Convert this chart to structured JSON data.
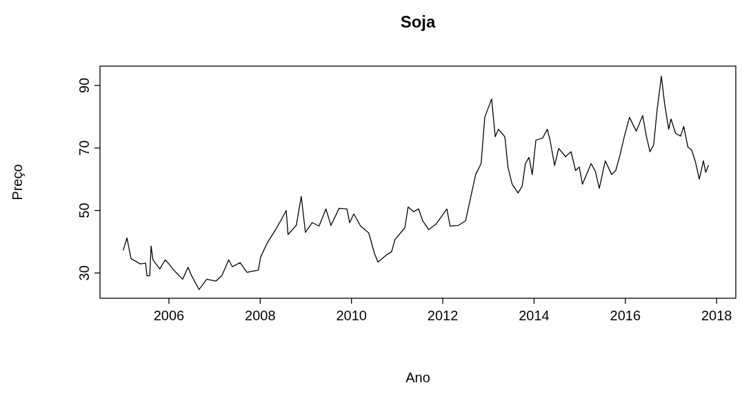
{
  "chart_data": {
    "type": "line",
    "title": "Soja",
    "xlabel": "Ano",
    "ylabel": "Preço",
    "xlim": [
      2004.49,
      2018.42
    ],
    "ylim": [
      21.9,
      96.2
    ],
    "xticks": [
      2006,
      2008,
      2010,
      2012,
      2014,
      2016,
      2018
    ],
    "yticks": [
      30,
      50,
      70,
      90
    ],
    "grid": false,
    "marker": "none",
    "line_style": "solid",
    "series": [
      {
        "color": "#000000",
        "x": [
          2005.0,
          2005.08,
          2005.17,
          2005.37,
          2005.49,
          2005.52,
          2005.58,
          2005.61,
          2005.65,
          2005.8,
          2005.92,
          2006.0,
          2006.12,
          2006.3,
          2006.42,
          2006.48,
          2006.66,
          2006.83,
          2007.03,
          2007.16,
          2007.31,
          2007.39,
          2007.56,
          2007.71,
          2007.96,
          2008.01,
          2008.15,
          2008.3,
          2008.45,
          2008.57,
          2008.61,
          2008.79,
          2008.9,
          2008.99,
          2009.14,
          2009.29,
          2009.44,
          2009.55,
          2009.73,
          2009.9,
          2009.96,
          2010.05,
          2010.2,
          2010.38,
          2010.5,
          2010.58,
          2010.76,
          2010.88,
          2010.95,
          2011.17,
          2011.24,
          2011.36,
          2011.47,
          2011.56,
          2011.69,
          2011.85,
          2012.09,
          2012.16,
          2012.34,
          2012.5,
          2012.6,
          2012.72,
          2012.84,
          2012.92,
          2013.07,
          2013.15,
          2013.22,
          2013.36,
          2013.43,
          2013.52,
          2013.65,
          2013.74,
          2013.81,
          2013.89,
          2013.96,
          2014.04,
          2014.19,
          2014.29,
          2014.35,
          2014.45,
          2014.54,
          2014.69,
          2014.81,
          2014.91,
          2014.99,
          2015.06,
          2015.25,
          2015.34,
          2015.43,
          2015.56,
          2015.7,
          2015.79,
          2015.89,
          2015.97,
          2016.09,
          2016.24,
          2016.38,
          2016.46,
          2016.54,
          2016.62,
          2016.7,
          2016.79,
          2016.86,
          2016.95,
          2017.0,
          2017.1,
          2017.21,
          2017.28,
          2017.37,
          2017.45,
          2017.53,
          2017.62,
          2017.71,
          2017.76,
          2017.82
        ],
        "values": [
          37.3,
          41.2,
          34.6,
          32.9,
          33.1,
          29.1,
          29.1,
          38.6,
          34.2,
          31.3,
          34.2,
          32.9,
          30.7,
          28.0,
          31.8,
          29.6,
          24.7,
          28.0,
          27.4,
          29.1,
          34.2,
          32.0,
          33.3,
          30.2,
          30.9,
          35.1,
          39.5,
          43.0,
          46.7,
          50.0,
          42.3,
          45.2,
          54.5,
          43.0,
          46.1,
          45.0,
          50.5,
          45.2,
          50.7,
          50.5,
          46.1,
          48.9,
          45.0,
          42.8,
          36.4,
          33.5,
          35.7,
          36.8,
          40.6,
          44.5,
          51.1,
          49.6,
          50.5,
          46.7,
          43.9,
          45.6,
          50.5,
          45.0,
          45.2,
          46.7,
          53.4,
          61.5,
          65.0,
          79.8,
          85.7,
          73.6,
          76.0,
          73.6,
          63.7,
          58.4,
          55.6,
          57.8,
          65.0,
          67.0,
          61.5,
          72.5,
          73.2,
          76.0,
          72.5,
          64.4,
          69.9,
          67.2,
          68.8,
          62.8,
          63.9,
          58.4,
          65.0,
          62.6,
          57.1,
          65.9,
          61.5,
          62.8,
          68.1,
          73.2,
          79.8,
          75.4,
          80.4,
          73.8,
          68.8,
          71.0,
          82.7,
          93.0,
          84.2,
          76.0,
          79.3,
          74.7,
          73.8,
          76.9,
          70.3,
          69.4,
          65.9,
          60.0,
          65.9,
          62.2,
          64.4
        ]
      }
    ]
  }
}
